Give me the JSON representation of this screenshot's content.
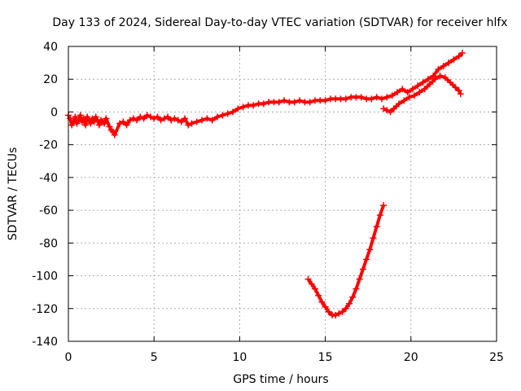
{
  "chart_data": {
    "type": "scatter",
    "title": "Day 133 of 2024, Sidereal Day-to-day VTEC variation (SDTVAR) for receiver hlfx",
    "xlabel": "GPS time / hours",
    "ylabel": "SDTVAR / TECUs",
    "xlim": [
      0,
      25
    ],
    "ylim": [
      -140,
      40
    ],
    "grid": true,
    "x_ticks": [
      0,
      5,
      10,
      15,
      20,
      25
    ],
    "y_ticks": [
      -140,
      -120,
      -100,
      -80,
      -60,
      -40,
      -20,
      0,
      20,
      40
    ],
    "marker": "+",
    "color": "#ff0000",
    "series": [
      {
        "name": "main",
        "points": [
          [
            0.0,
            -2
          ],
          [
            0.1,
            -4
          ],
          [
            0.2,
            -8
          ],
          [
            0.3,
            -6
          ],
          [
            0.4,
            -3
          ],
          [
            0.5,
            -7
          ],
          [
            0.6,
            -5
          ],
          [
            0.7,
            -2
          ],
          [
            0.8,
            -6
          ],
          [
            0.9,
            -4
          ],
          [
            1.0,
            -8
          ],
          [
            1.1,
            -3
          ],
          [
            1.2,
            -5
          ],
          [
            1.3,
            -7
          ],
          [
            1.4,
            -4
          ],
          [
            1.5,
            -6
          ],
          [
            1.6,
            -3
          ],
          [
            1.7,
            -5
          ],
          [
            1.8,
            -8
          ],
          [
            1.9,
            -5
          ],
          [
            2.0,
            -6
          ],
          [
            2.1,
            -7
          ],
          [
            2.2,
            -4
          ],
          [
            2.4,
            -9
          ],
          [
            2.5,
            -11
          ],
          [
            2.6,
            -12
          ],
          [
            2.7,
            -14
          ],
          [
            3.0,
            -7
          ],
          [
            3.2,
            -6
          ],
          [
            3.4,
            -8
          ],
          [
            3.6,
            -5
          ],
          [
            3.8,
            -4
          ],
          [
            4.0,
            -5
          ],
          [
            4.2,
            -3
          ],
          [
            4.4,
            -4
          ],
          [
            4.6,
            -2
          ],
          [
            4.8,
            -3
          ],
          [
            5.0,
            -4
          ],
          [
            5.2,
            -3
          ],
          [
            5.4,
            -5
          ],
          [
            5.6,
            -4
          ],
          [
            5.8,
            -3
          ],
          [
            6.0,
            -5
          ],
          [
            6.2,
            -4
          ],
          [
            6.4,
            -5
          ],
          [
            6.6,
            -6
          ],
          [
            6.8,
            -4
          ],
          [
            7.0,
            -8
          ],
          [
            7.2,
            -7
          ],
          [
            7.5,
            -6
          ],
          [
            7.8,
            -5
          ],
          [
            8.1,
            -4
          ],
          [
            8.4,
            -5
          ],
          [
            8.7,
            -3
          ],
          [
            9.0,
            -2
          ],
          [
            9.3,
            -1
          ],
          [
            9.6,
            0
          ],
          [
            9.9,
            2
          ],
          [
            10.2,
            3
          ],
          [
            10.5,
            4
          ],
          [
            10.8,
            4
          ],
          [
            11.1,
            5
          ],
          [
            11.4,
            5
          ],
          [
            11.7,
            6
          ],
          [
            12.0,
            6
          ],
          [
            12.3,
            6
          ],
          [
            12.6,
            7
          ],
          [
            12.9,
            6
          ],
          [
            13.2,
            6
          ],
          [
            13.5,
            7
          ],
          [
            13.8,
            6
          ],
          [
            14.1,
            6
          ],
          [
            14.4,
            7
          ],
          [
            14.7,
            7
          ],
          [
            15.0,
            7
          ],
          [
            15.3,
            8
          ],
          [
            15.6,
            8
          ],
          [
            15.9,
            8
          ],
          [
            16.2,
            8
          ],
          [
            16.5,
            9
          ],
          [
            16.8,
            9
          ],
          [
            17.1,
            9
          ],
          [
            17.4,
            8
          ],
          [
            17.7,
            8
          ],
          [
            18.0,
            9
          ],
          [
            18.3,
            8
          ],
          [
            18.6,
            9
          ],
          [
            18.9,
            10
          ],
          [
            19.2,
            12
          ],
          [
            19.5,
            14
          ],
          [
            19.8,
            12
          ],
          [
            20.1,
            14
          ],
          [
            20.4,
            16
          ],
          [
            20.7,
            18
          ],
          [
            21.0,
            20
          ],
          [
            21.3,
            22
          ],
          [
            21.6,
            26
          ],
          [
            21.9,
            28
          ],
          [
            22.2,
            30
          ],
          [
            22.5,
            32
          ],
          [
            22.8,
            34
          ],
          [
            23.0,
            36
          ]
        ]
      },
      {
        "name": "lower-branch",
        "points": [
          [
            18.4,
            2
          ],
          [
            18.6,
            1
          ],
          [
            18.8,
            0
          ],
          [
            19.0,
            2
          ],
          [
            19.3,
            5
          ],
          [
            19.6,
            7
          ],
          [
            19.9,
            9
          ],
          [
            20.2,
            10
          ],
          [
            20.5,
            12
          ],
          [
            20.8,
            14
          ],
          [
            21.1,
            17
          ],
          [
            21.4,
            20
          ],
          [
            21.7,
            22
          ],
          [
            22.0,
            21
          ],
          [
            22.3,
            18
          ],
          [
            22.6,
            15
          ],
          [
            22.8,
            13
          ],
          [
            22.9,
            11
          ]
        ]
      },
      {
        "name": "dip",
        "points": [
          [
            14.0,
            -102
          ],
          [
            14.2,
            -105
          ],
          [
            14.4,
            -108
          ],
          [
            14.6,
            -112
          ],
          [
            14.8,
            -116
          ],
          [
            15.0,
            -119
          ],
          [
            15.2,
            -122
          ],
          [
            15.4,
            -124
          ],
          [
            15.6,
            -124
          ],
          [
            15.8,
            -123
          ],
          [
            16.0,
            -122
          ],
          [
            16.2,
            -120
          ],
          [
            16.4,
            -117
          ],
          [
            16.6,
            -113
          ],
          [
            16.8,
            -108
          ],
          [
            17.0,
            -102
          ],
          [
            17.2,
            -96
          ],
          [
            17.4,
            -90
          ],
          [
            17.6,
            -84
          ],
          [
            17.8,
            -77
          ],
          [
            18.0,
            -70
          ],
          [
            18.2,
            -63
          ],
          [
            18.4,
            -57
          ]
        ]
      }
    ]
  }
}
